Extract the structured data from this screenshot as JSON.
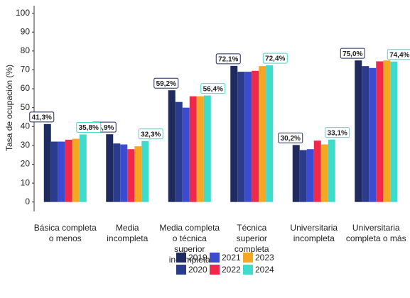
{
  "chart_data": {
    "type": "bar",
    "y_label": "Tasa de ocupación (%)",
    "categories": [
      "Básica completa\no menos",
      "Media\nincompleta",
      "Media completa\no técnica\nsuperior\nincompleta",
      "Técnica\nsuperior\ncompleta",
      "Universitaria\nincompleta",
      "Universitaria\ncompleta o más"
    ],
    "series": [
      {
        "name": "2019",
        "color": "#1f2b5e",
        "values": [
          41.3,
          35.9,
          59.2,
          72.1,
          30.2,
          75.0
        ],
        "value_labels": [
          "41,3%",
          "35,9%",
          "59,2%",
          "72,1%",
          "30,2%",
          "75,0%"
        ]
      },
      {
        "name": "2020",
        "color": "#2c3c8c",
        "values": [
          32,
          31,
          53,
          69,
          27.5,
          72
        ]
      },
      {
        "name": "2021",
        "color": "#3b4cd0",
        "values": [
          32,
          30.5,
          50,
          69,
          28,
          71
        ]
      },
      {
        "name": "2022",
        "color": "#f0284a",
        "values": [
          33,
          28,
          56,
          69.5,
          32.5,
          74.5
        ]
      },
      {
        "name": "2023",
        "color": "#f5a623",
        "values": [
          33.5,
          29.5,
          56,
          72,
          30.5,
          75
        ]
      },
      {
        "name": "2024",
        "color": "#3fdccc",
        "values": [
          35.8,
          32.3,
          56.4,
          72.4,
          33.1,
          74.4
        ],
        "value_labels": [
          "35,8%",
          "32,3%",
          "56,4%",
          "72,4%",
          "33,1%",
          "74,4%"
        ]
      }
    ],
    "ylim": [
      -5,
      104
    ],
    "yticks": [
      0,
      10,
      20,
      30,
      40,
      50,
      60,
      70,
      80,
      90,
      100
    ]
  }
}
